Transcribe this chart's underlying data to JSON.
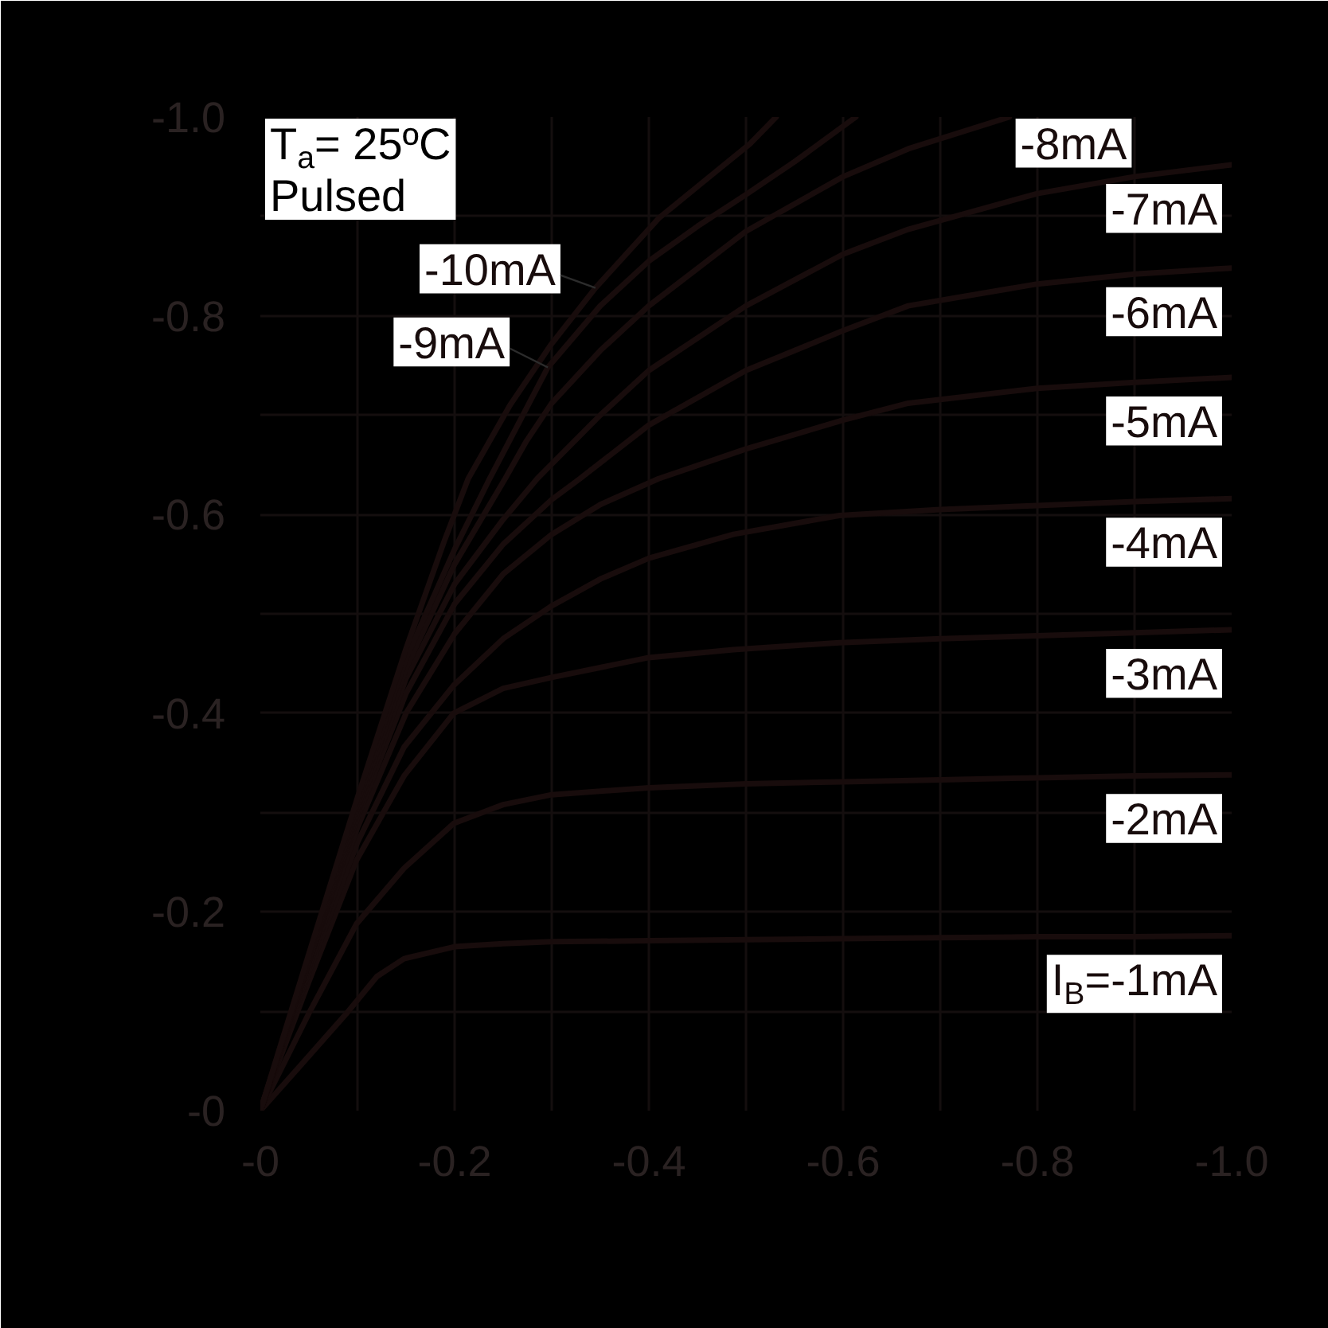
{
  "chart_data": {
    "type": "line",
    "xlim": [
      0,
      -1
    ],
    "ylim": [
      0,
      -1
    ],
    "xticks": [
      {
        "value": 0,
        "label": "-0"
      },
      {
        "value": -0.1,
        "label": null
      },
      -0.2,
      {
        "value": -0.3,
        "label": null
      },
      -0.4,
      {
        "value": -0.5,
        "label": null
      },
      -0.6,
      {
        "value": -0.7,
        "label": null
      },
      -0.8,
      {
        "value": -0.9,
        "label": null
      },
      {
        "value": -1,
        "label": "-1.0"
      }
    ],
    "yticks": [
      {
        "value": 0,
        "label": "-0"
      },
      {
        "value": -0.1,
        "label": null
      },
      -0.2,
      {
        "value": -0.3,
        "label": null
      },
      -0.4,
      {
        "value": -0.5,
        "label": null
      },
      -0.6,
      {
        "value": -0.7,
        "label": null
      },
      -0.8,
      {
        "value": -0.9,
        "label": null
      },
      {
        "value": -1,
        "label": "-1.0"
      }
    ],
    "grid": true,
    "annotations": [
      "T$_{a}$= 25ºC",
      "Pulsed"
    ],
    "series": [
      {
        "name": "I$_{B}$=-1mA",
        "color": "#180c0c",
        "x": [
          0,
          -0.04,
          -0.088,
          -0.12,
          -0.148,
          -0.2,
          -0.25,
          -0.3,
          -0.4,
          -0.5,
          -0.6,
          -0.7,
          -0.8,
          -0.9,
          -1.0
        ],
        "values": [
          0,
          -0.044,
          -0.097,
          -0.135,
          -0.153,
          -0.165,
          -0.168,
          -0.17,
          -0.171,
          -0.172,
          -0.173,
          -0.174,
          -0.175,
          -0.175,
          -0.176
        ]
      },
      {
        "name": "-2mA",
        "color": "#180c0c",
        "x": [
          0,
          -0.05,
          -0.099,
          -0.148,
          -0.199,
          -0.25,
          -0.3,
          -0.4,
          -0.5,
          -0.6,
          -0.7,
          -0.8,
          -0.9,
          -1.0
        ],
        "values": [
          0,
          -0.098,
          -0.188,
          -0.244,
          -0.289,
          -0.308,
          -0.318,
          -0.325,
          -0.329,
          -0.331,
          -0.333,
          -0.335,
          -0.337,
          -0.338
        ]
      },
      {
        "name": "-3mA",
        "color": "#180c0c",
        "x": [
          0,
          -0.05,
          -0.099,
          -0.148,
          -0.199,
          -0.25,
          -0.3,
          -0.4,
          -0.487,
          -0.596,
          -0.7,
          -0.8,
          -0.9,
          -1.0
        ],
        "values": [
          0,
          -0.13,
          -0.252,
          -0.337,
          -0.4,
          -0.425,
          -0.436,
          -0.456,
          -0.464,
          -0.471,
          -0.475,
          -0.478,
          -0.481,
          -0.484
        ]
      },
      {
        "name": "-4mA",
        "color": "#180c0c",
        "x": [
          0,
          -0.05,
          -0.1,
          -0.148,
          -0.199,
          -0.25,
          -0.3,
          -0.35,
          -0.4,
          -0.487,
          -0.596,
          -0.7,
          -0.8,
          -0.9,
          -1.0
        ],
        "values": [
          0,
          -0.14,
          -0.27,
          -0.366,
          -0.428,
          -0.475,
          -0.508,
          -0.535,
          -0.556,
          -0.58,
          -0.599,
          -0.605,
          -0.609,
          -0.613,
          -0.616
        ]
      },
      {
        "name": "-5mA",
        "color": "#180c0c",
        "x": [
          0,
          -0.05,
          -0.1,
          -0.15,
          -0.2,
          -0.25,
          -0.3,
          -0.35,
          -0.41,
          -0.5,
          -0.6,
          -0.667,
          -0.8,
          -0.9,
          -1.0
        ],
        "values": [
          0,
          -0.145,
          -0.285,
          -0.4,
          -0.48,
          -0.54,
          -0.58,
          -0.61,
          -0.636,
          -0.666,
          -0.695,
          -0.712,
          -0.727,
          -0.733,
          -0.738
        ]
      },
      {
        "name": "-6mA",
        "color": "#180c0c",
        "x": [
          0,
          -0.05,
          -0.1,
          -0.15,
          -0.2,
          -0.25,
          -0.3,
          -0.329,
          -0.4,
          -0.5,
          -0.6,
          -0.667,
          -0.8,
          -0.9,
          -1.0
        ],
        "values": [
          0,
          -0.15,
          -0.295,
          -0.42,
          -0.51,
          -0.57,
          -0.615,
          -0.636,
          -0.69,
          -0.745,
          -0.785,
          -0.81,
          -0.832,
          -0.842,
          -0.848
        ]
      },
      {
        "name": "-7mA",
        "color": "#180c0c",
        "x": [
          0,
          -0.05,
          -0.1,
          -0.15,
          -0.2,
          -0.25,
          -0.285,
          -0.35,
          -0.4,
          -0.5,
          -0.6,
          -0.667,
          -0.8,
          -0.9,
          -1.0
        ],
        "values": [
          0,
          -0.15,
          -0.3,
          -0.435,
          -0.53,
          -0.595,
          -0.636,
          -0.7,
          -0.745,
          -0.81,
          -0.862,
          -0.887,
          -0.923,
          -0.94,
          -0.952
        ]
      },
      {
        "name": "-8mA",
        "color": "#180c0c",
        "x": [
          0,
          -0.05,
          -0.1,
          -0.15,
          -0.2,
          -0.252,
          -0.274,
          -0.3,
          -0.35,
          -0.4,
          -0.5,
          -0.6,
          -0.667,
          -0.771
        ],
        "values": [
          0,
          -0.152,
          -0.305,
          -0.445,
          -0.55,
          -0.636,
          -0.674,
          -0.712,
          -0.765,
          -0.81,
          -0.885,
          -0.94,
          -0.968,
          -1.0
        ]
      },
      {
        "name": "-9mA",
        "color": "#180c0c",
        "x": [
          0,
          -0.05,
          -0.1,
          -0.15,
          -0.2,
          -0.236,
          -0.296,
          -0.35,
          -0.4,
          -0.45,
          -0.5,
          -0.55,
          -0.613
        ],
        "values": [
          0,
          -0.155,
          -0.31,
          -0.455,
          -0.565,
          -0.636,
          -0.748,
          -0.81,
          -0.855,
          -0.89,
          -0.922,
          -0.955,
          -1.0
        ]
      },
      {
        "name": "-10mA",
        "color": "#180c0c",
        "x": [
          0,
          -0.05,
          -0.1,
          -0.15,
          -0.19,
          -0.214,
          -0.257,
          -0.3,
          -0.345,
          -0.41,
          -0.45,
          -0.504,
          -0.531
        ],
        "values": [
          0,
          -0.158,
          -0.315,
          -0.465,
          -0.575,
          -0.636,
          -0.71,
          -0.772,
          -0.828,
          -0.898,
          -0.93,
          -0.973,
          -1.0
        ]
      }
    ]
  }
}
